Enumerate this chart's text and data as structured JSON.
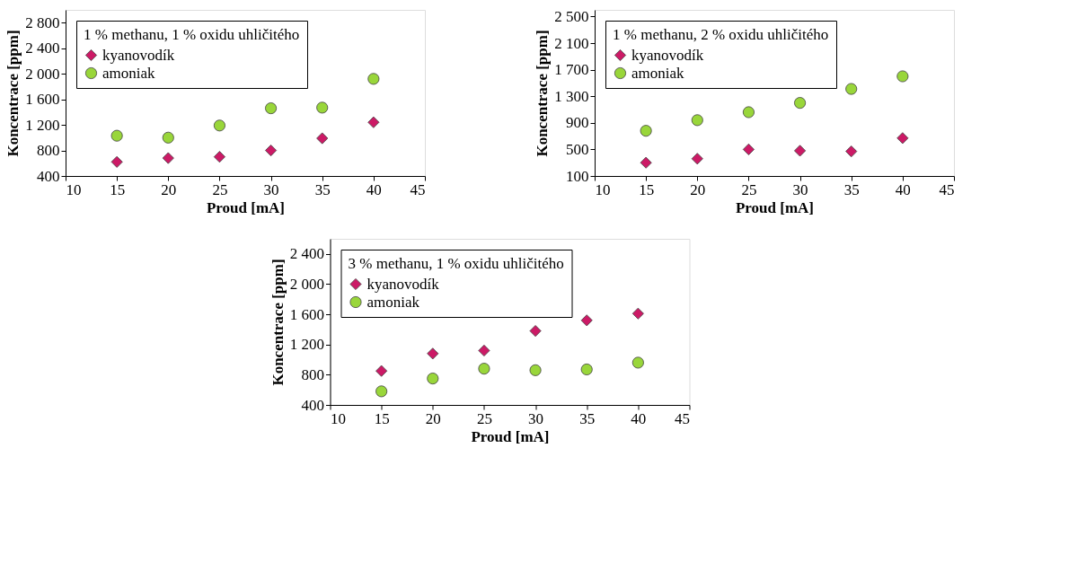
{
  "chart_data": [
    {
      "type": "scatter",
      "legend_title": "1 % methanu, 1 % oxidu uhličitého",
      "xlabel": "Proud [mA]",
      "ylabel": "Koncentrace [ppm]",
      "legend": "top left",
      "grid": false,
      "x": [
        15,
        20,
        25,
        30,
        35,
        40
      ],
      "series": [
        {
          "name": "kyanovodík",
          "color": "#cc1a66",
          "marker": "diamond",
          "values": [
            620,
            680,
            700,
            800,
            990,
            1240
          ]
        },
        {
          "name": "amoniak",
          "color": "#99d63a",
          "marker": "circle",
          "values": [
            1030,
            1000,
            1190,
            1460,
            1470,
            1920
          ]
        }
      ],
      "xlim": [
        10,
        45
      ],
      "xticks": [
        10,
        15,
        20,
        25,
        30,
        35,
        40,
        45
      ],
      "ylim": [
        400,
        3000
      ],
      "yticks": [
        400,
        800,
        {
          "value": 1200,
          "label": "1 200"
        },
        {
          "value": 1600,
          "label": "1 600"
        },
        {
          "value": 2000,
          "label": "2 000"
        },
        {
          "value": 2400,
          "label": "2 400"
        },
        {
          "value": 2800,
          "label": "2 800"
        }
      ]
    },
    {
      "type": "scatter",
      "legend_title": "1 % methanu, 2 % oxidu uhličitého",
      "xlabel": "Proud [mA]",
      "ylabel": "Koncentrace [ppm]",
      "legend": "top left",
      "grid": false,
      "x": [
        15,
        20,
        25,
        30,
        35,
        40
      ],
      "series": [
        {
          "name": "kyanovodík",
          "color": "#cc1a66",
          "marker": "diamond",
          "values": [
            300,
            360,
            500,
            480,
            470,
            670
          ]
        },
        {
          "name": "amoniak",
          "color": "#99d63a",
          "marker": "circle",
          "values": [
            780,
            940,
            1060,
            1200,
            1410,
            1600
          ]
        }
      ],
      "xlim": [
        10,
        45
      ],
      "xticks": [
        10,
        15,
        20,
        25,
        30,
        35,
        40,
        45
      ],
      "ylim": [
        100,
        2600
      ],
      "yticks": [
        100,
        500,
        900,
        {
          "value": 1300,
          "label": "1 300"
        },
        {
          "value": 1700,
          "label": "1 700"
        },
        {
          "value": 2100,
          "label": "2 100"
        },
        {
          "value": 2500,
          "label": "2 500"
        }
      ]
    },
    {
      "type": "scatter",
      "legend_title": "3 % methanu, 1 % oxidu uhličitého",
      "xlabel": "Proud [mA]",
      "ylabel": "Koncentrace [ppm]",
      "legend": "top left",
      "grid": false,
      "x": [
        15,
        20,
        25,
        30,
        35,
        40
      ],
      "series": [
        {
          "name": "kyanovodík",
          "color": "#cc1a66",
          "marker": "diamond",
          "values": [
            850,
            1080,
            1120,
            1380,
            1520,
            1610
          ]
        },
        {
          "name": "amoniak",
          "color": "#99d63a",
          "marker": "circle",
          "values": [
            580,
            750,
            880,
            860,
            870,
            960
          ]
        }
      ],
      "xlim": [
        10,
        45
      ],
      "xticks": [
        10,
        15,
        20,
        25,
        30,
        35,
        40,
        45
      ],
      "ylim": [
        400,
        2600
      ],
      "yticks": [
        400,
        800,
        {
          "value": 1200,
          "label": "1 200"
        },
        {
          "value": 1600,
          "label": "1 600"
        },
        {
          "value": 2000,
          "label": "2 000"
        },
        {
          "value": 2400,
          "label": "2 400"
        }
      ]
    }
  ]
}
